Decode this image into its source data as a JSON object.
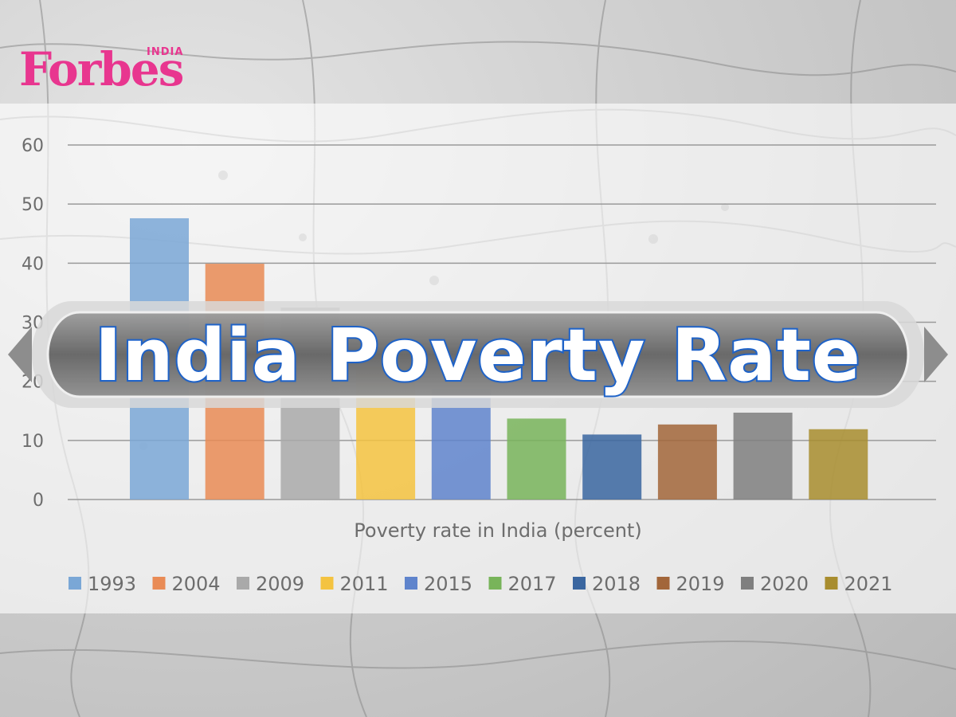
{
  "brand": {
    "logo": "Forbes",
    "logo_sub": "INDIA"
  },
  "banner": {
    "title": "India Poverty Rate"
  },
  "chart_data": {
    "type": "bar",
    "title": "India Poverty Rate",
    "xlabel": "Poverty rate in India (percent)",
    "ylabel": "",
    "ylim": [
      0,
      60
    ],
    "yticks": [
      "0",
      "10",
      "20",
      "30",
      "40",
      "50",
      "60"
    ],
    "grid": true,
    "legend_position": "bottom",
    "series": [
      {
        "name": "1993",
        "value": 47.6,
        "color": "#7aa7d6"
      },
      {
        "name": "2004",
        "value": 39.9,
        "color": "#e98b55"
      },
      {
        "name": "2009",
        "value": 32.5,
        "color": "#a9a9a9"
      },
      {
        "name": "2011",
        "value": 22.5,
        "color": "#f4c340"
      },
      {
        "name": "2015",
        "value": 18.7,
        "color": "#5f84cc"
      },
      {
        "name": "2017",
        "value": 13.7,
        "color": "#78b45a"
      },
      {
        "name": "2018",
        "value": 11.0,
        "color": "#3a66a0"
      },
      {
        "name": "2019",
        "value": 12.7,
        "color": "#a2663a"
      },
      {
        "name": "2020",
        "value": 14.7,
        "color": "#7f7f7f"
      },
      {
        "name": "2021",
        "value": 11.9,
        "color": "#a88d2e"
      }
    ]
  }
}
